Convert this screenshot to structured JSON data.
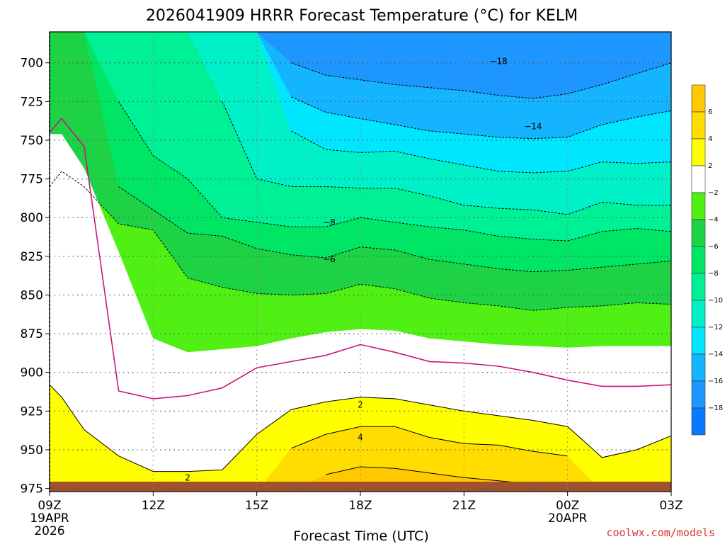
{
  "chart_data": {
    "type": "heatmap",
    "title": "2026041909 HRRR Forecast Temperature (°C) for KELM",
    "xlabel": "Forecast Time (UTC)",
    "ylabel": "",
    "x_ticks": [
      {
        "hour": 0,
        "label": "09Z",
        "date1": "19APR",
        "date2": "2026"
      },
      {
        "hour": 3,
        "label": "12Z"
      },
      {
        "hour": 6,
        "label": "15Z"
      },
      {
        "hour": 9,
        "label": "18Z"
      },
      {
        "hour": 12,
        "label": "21Z"
      },
      {
        "hour": 15,
        "label": "00Z",
        "date1": "20APR"
      },
      {
        "hour": 18,
        "label": "03Z"
      }
    ],
    "y_ticks": [
      700,
      725,
      750,
      775,
      800,
      825,
      850,
      875,
      900,
      925,
      950,
      975
    ],
    "ylim": [
      680,
      977
    ],
    "xlim": [
      0,
      18
    ],
    "hours": [
      0,
      0.35,
      1,
      2,
      3,
      4,
      5,
      6,
      7,
      8,
      9,
      10,
      11,
      12,
      13,
      14,
      15,
      16,
      17,
      18
    ],
    "levels": [
      {
        "value": -18,
        "color": "#0a78ff",
        "boundary_p": [
          680,
          680,
          680,
          680,
          680,
          680,
          680,
          680,
          680,
          680,
          680,
          680,
          680,
          680,
          680,
          680,
          680,
          680,
          680,
          680
        ]
      },
      {
        "value": -16,
        "color": "#1e96ff",
        "boundary_p": [
          680,
          680,
          680,
          680,
          680,
          680,
          680,
          680,
          680,
          680,
          680,
          680,
          680,
          680,
          680,
          680,
          680,
          680,
          680,
          680
        ]
      },
      {
        "value": -14,
        "color": "#14b4ff",
        "boundary_p": [
          680,
          680,
          680,
          680,
          680,
          680,
          680,
          680,
          700,
          708,
          711,
          714,
          716,
          718,
          721,
          723,
          720,
          714,
          707,
          700
        ]
      },
      {
        "value": -12,
        "color": "#00e6ff",
        "boundary_p": [
          680,
          680,
          680,
          680,
          680,
          680,
          680,
          680,
          722,
          732,
          736,
          740,
          744,
          746,
          748,
          749,
          748,
          740,
          735,
          731
        ]
      },
      {
        "value": -10,
        "color": "#00f0c8",
        "boundary_p": [
          680,
          680,
          680,
          680,
          680,
          680,
          680,
          680,
          744,
          756,
          758,
          757,
          762,
          766,
          770,
          771,
          770,
          764,
          765,
          764
        ]
      },
      {
        "value": -8,
        "color": "#00f096",
        "boundary_p": [
          680,
          680,
          680,
          680,
          680,
          680,
          725,
          775,
          780,
          780,
          781,
          781,
          786,
          792,
          794,
          795,
          798,
          790,
          792,
          792
        ]
      },
      {
        "value": -6,
        "color": "#00e664",
        "boundary_p": [
          680,
          680,
          680,
          725,
          760,
          775,
          800,
          803,
          806,
          806,
          800,
          803,
          806,
          808,
          812,
          814,
          815,
          809,
          807,
          809
        ]
      },
      {
        "value": -4,
        "color": "#1ed246",
        "boundary_p": [
          680,
          680,
          680,
          780,
          795,
          810,
          812,
          820,
          824,
          826,
          819,
          821,
          827,
          830,
          833,
          835,
          834,
          832,
          830,
          828
        ]
      },
      {
        "value": -2,
        "color": "#50f014",
        "boundary_p": [
          780,
          770,
          780,
          804,
          808,
          839,
          845,
          849,
          850,
          849,
          843,
          846,
          852,
          855,
          857,
          860,
          858,
          857,
          855,
          856
        ]
      },
      {
        "value": 2,
        "color": "#ffffff",
        "boundary_p": [
          746,
          746,
          768,
          822,
          878,
          887,
          885,
          883,
          878,
          874,
          872,
          873,
          878,
          880,
          882,
          883,
          884,
          883,
          883,
          883
        ]
      },
      {
        "value": 4,
        "color": "#ffff00",
        "boundary_p": [
          908,
          916,
          937,
          954,
          964,
          964,
          963,
          940,
          924,
          919,
          916,
          917,
          921,
          925,
          928,
          931,
          935,
          955,
          950,
          941
        ]
      },
      {
        "value": 6,
        "color": "#ffdd00",
        "boundary_p": [
          977,
          977,
          977,
          977,
          977,
          977,
          977,
          977,
          949,
          940,
          935,
          935,
          942,
          946,
          947,
          951,
          954,
          977,
          977,
          977
        ]
      },
      {
        "value": 8,
        "color": "#ffc800",
        "boundary_p": [
          977,
          977,
          977,
          977,
          977,
          977,
          977,
          977,
          977,
          966,
          961,
          962,
          965,
          968,
          970,
          972,
          974,
          977,
          977,
          977
        ]
      }
    ],
    "zero_line_p": [
      745,
      736,
      754,
      912,
      917,
      915,
      910,
      897,
      893,
      889,
      882,
      887,
      893,
      894,
      896,
      900,
      905,
      909,
      909,
      908
    ],
    "contour_labels": [
      {
        "text": "−18",
        "hour": 13.0,
        "p": 699
      },
      {
        "text": "−14",
        "hour": 14.0,
        "p": 741
      },
      {
        "text": "−8",
        "hour": 8.1,
        "p": 803
      },
      {
        "text": "−6",
        "hour": 8.1,
        "p": 827
      },
      {
        "text": "2",
        "hour": 9.0,
        "p": 921
      },
      {
        "text": "4",
        "hour": 9.0,
        "p": 942
      },
      {
        "text": "2",
        "hour": 4.0,
        "p": 968
      }
    ],
    "colorbar": {
      "labels": [
        "6",
        "4",
        "2",
        "−2",
        "−4",
        "−6",
        "−8",
        "−10",
        "−12",
        "−14",
        "−16",
        "−18"
      ],
      "colors": [
        "#ffc800",
        "#ffdd00",
        "#ffff00",
        "#ffffff",
        "#50f014",
        "#1ed246",
        "#00e664",
        "#00f096",
        "#00f0c8",
        "#00e6ff",
        "#14b4ff",
        "#1e96ff",
        "#0a78ff"
      ]
    },
    "ground_color": "#a0522d",
    "zero_line_color": "#cc1477",
    "grid": true
  },
  "footer": {
    "credit": "coolwx.com/models",
    "credit_color": "#e03030"
  }
}
